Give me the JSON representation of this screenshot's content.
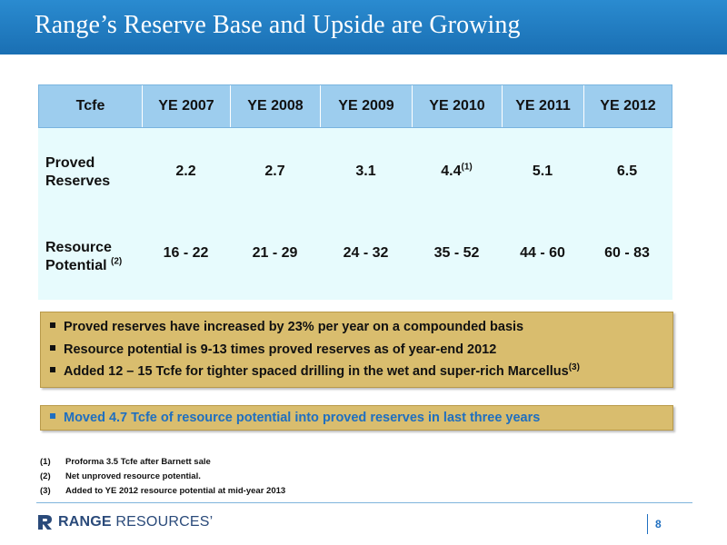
{
  "slide": {
    "title": "Range’s Reserve Base and Upside are Growing",
    "page_number": "8"
  },
  "table": {
    "headers": [
      "Tcfe",
      "YE 2007",
      "YE 2008",
      "YE 2009",
      "YE 2010",
      "YE 2011",
      "YE 2012"
    ],
    "rows": [
      {
        "label_line1": "Proved",
        "label_line2": "Reserves",
        "label_sup": "",
        "values": [
          "2.2",
          "2.7",
          "3.1",
          "4.4",
          "5.1",
          "6.5"
        ],
        "value_sup_index3": "(1)"
      },
      {
        "label_line1": "Resource",
        "label_line2": "Potential",
        "label_sup": "(2)",
        "values": [
          "16 - 22",
          "21 - 29",
          "24 - 32",
          "35 - 52",
          "44 - 60",
          "60 - 83"
        ]
      }
    ]
  },
  "highlights": {
    "bullets": [
      "Proved reserves have increased by 23% per year on a compounded basis",
      "Resource potential is 9-13 times proved reserves as of year-end 2012",
      "Added 12 – 15 Tcfe for tighter spaced drilling in the wet and super-rich Marcellus"
    ],
    "bullet3_sup": "(3)",
    "callout": "Moved 4.7 Tcfe of resource potential into proved reserves in last three years"
  },
  "footnotes": [
    {
      "num": "(1)",
      "text": "Proforma 3.5 Tcfe after Barnett sale"
    },
    {
      "num": "(2)",
      "text": "Net unproved resource potential."
    },
    {
      "num": "(3)",
      "text": "Added to YE 2012 resource potential at mid-year 2013"
    }
  ],
  "logo": {
    "bold": "RANGE",
    "light": " RESOURCES",
    "mark": "’"
  },
  "colors": {
    "title_bar": "#1a6fb3",
    "header_row": "#9dcdee",
    "table_body": "#e7fbfd",
    "gold_box": "#d9bd6e",
    "callout_text": "#1f6fc0"
  }
}
